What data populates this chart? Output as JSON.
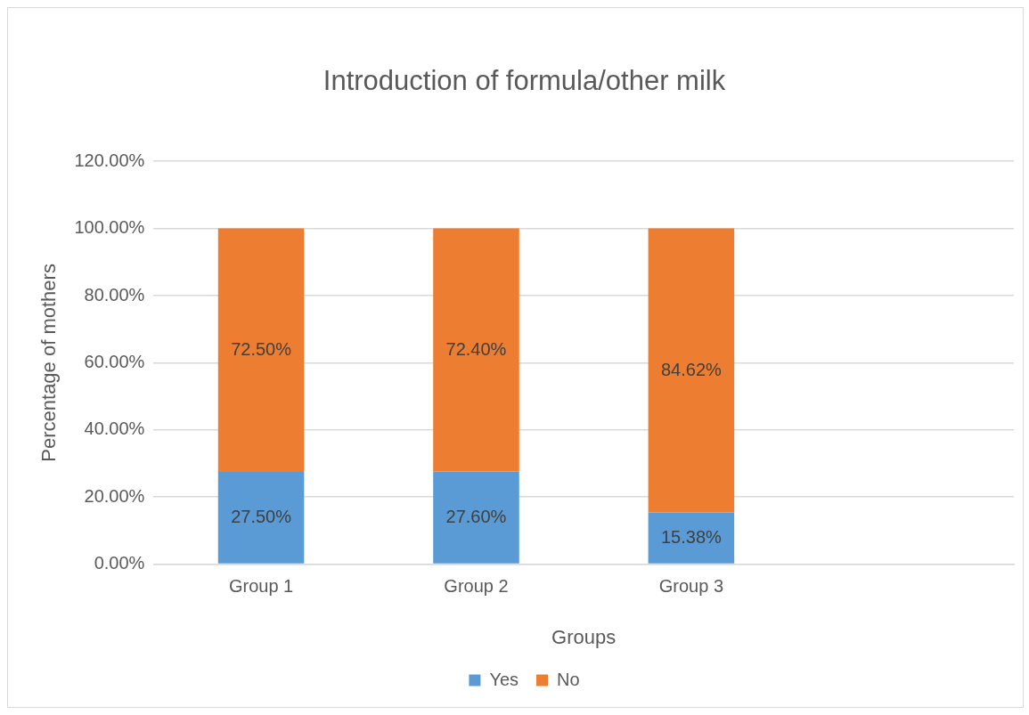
{
  "chart_data": {
    "type": "bar",
    "title": "Introduction of formula/other milk",
    "xlabel": "Groups",
    "ylabel": "Percentage of mothers",
    "categories": [
      "Group 1",
      "Group 2",
      "Group 3",
      null
    ],
    "stacked": true,
    "series": [
      {
        "name": "Yes",
        "color": "#5b9bd5",
        "values": [
          27.5,
          27.6,
          15.38,
          null
        ],
        "value_labels": [
          "27.50%",
          "27.60%",
          "15.38%",
          null
        ]
      },
      {
        "name": "No",
        "color": "#ed7d31",
        "values": [
          72.5,
          72.4,
          84.62,
          null
        ],
        "value_labels": [
          "72.50%",
          "72.40%",
          "84.62%",
          null
        ]
      }
    ],
    "ylim": [
      0,
      120
    ],
    "yticks": [
      {
        "value": 0,
        "label": "0.00%"
      },
      {
        "value": 20,
        "label": "20.00%"
      },
      {
        "value": 40,
        "label": "40.00%"
      },
      {
        "value": 60,
        "label": "60.00%"
      },
      {
        "value": 80,
        "label": "80.00%"
      },
      {
        "value": 100,
        "label": "100.00%"
      },
      {
        "value": 120,
        "label": "120.00%"
      }
    ],
    "grid": "y",
    "legend": "bottom"
  }
}
